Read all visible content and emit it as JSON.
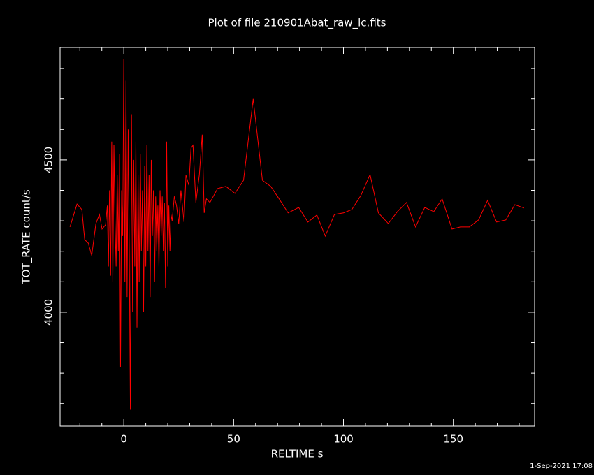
{
  "chart_data": {
    "type": "line",
    "title": "Plot of file 210901Abat_raw_lc.fits",
    "x_label": "RELTIME  s",
    "y_label": "TOT_RATE  count/s",
    "timestamp": "1-Sep-2021 17:08",
    "xlim": [
      -29,
      187
    ],
    "ylim": [
      3626,
      4869
    ],
    "xticks": [
      0,
      50,
      100,
      150
    ],
    "xminor_ticks": [
      -20,
      -10,
      10,
      20,
      30,
      40,
      60,
      70,
      80,
      90,
      110,
      120,
      130,
      140,
      160,
      170,
      180
    ],
    "yticks": [
      4000,
      4500
    ],
    "yminor_ticks": [
      3700,
      3800,
      3900,
      4100,
      4200,
      4300,
      4400,
      4600,
      4700,
      4800
    ],
    "series": [
      {
        "name": "TOT_RATE",
        "color": "#ff0000",
        "x": [
          -24.5,
          -21.3,
          -19.1,
          -17.8,
          -16.2,
          -14.6,
          -12.7,
          -11.1,
          -9.9,
          -8.3,
          -7.5,
          -7,
          -6.5,
          -6,
          -5.5,
          -5,
          -4.5,
          -4,
          -3.5,
          -3,
          -2.5,
          -2,
          -1.5,
          -1,
          -0.5,
          0,
          0.5,
          1,
          1.5,
          2,
          2.5,
          3,
          3.5,
          4,
          4.5,
          5,
          5.5,
          6,
          6.5,
          7,
          7.5,
          8,
          8.5,
          9,
          9.5,
          10,
          10.5,
          11,
          11.5,
          12,
          12.5,
          13,
          13.5,
          14,
          14.5,
          15,
          15.5,
          16,
          16.5,
          17,
          17.5,
          18,
          18.5,
          19,
          19.5,
          20,
          20.5,
          21,
          21.5,
          22,
          23,
          24,
          25,
          26,
          27.4,
          28.3,
          29.6,
          30.6,
          31.5,
          32.8,
          34.4,
          35.7,
          36.6,
          37.6,
          39.2,
          42.7,
          46.5,
          50.6,
          54.5,
          58.9,
          63.1,
          66.9,
          70.7,
          74.8,
          79.6,
          83.8,
          87.9,
          91.7,
          95.9,
          100,
          103.8,
          107.9,
          112.1,
          115.9,
          120.4,
          124.5,
          128.7,
          132.8,
          137,
          141.1,
          144.9,
          149.4,
          153.2,
          157.3,
          161.5,
          165.6,
          169.7,
          173.9,
          178,
          182.2
        ],
        "values": [
          4280,
          4355,
          4337,
          4238,
          4227,
          4186,
          4291,
          4321,
          4273,
          4287,
          4350,
          4150,
          4400,
          4120,
          4560,
          4100,
          4550,
          4300,
          4150,
          4450,
          4200,
          4520,
          3820,
          4400,
          4250,
          4830,
          4100,
          4760,
          4050,
          4600,
          4200,
          3680,
          4650,
          4000,
          4500,
          4150,
          4560,
          3950,
          4450,
          4100,
          4520,
          4200,
          4400,
          4000,
          4480,
          4150,
          4550,
          4200,
          4450,
          4050,
          4500,
          4250,
          4400,
          4100,
          4380,
          4200,
          4350,
          4150,
          4400,
          4250,
          4380,
          4200,
          4360,
          4080,
          4560,
          4150,
          4350,
          4200,
          4320,
          4300,
          4380,
          4350,
          4290,
          4400,
          4296,
          4450,
          4417,
          4539,
          4548,
          4360,
          4452,
          4583,
          4326,
          4372,
          4360,
          4406,
          4413,
          4390,
          4433,
          4700,
          4433,
          4413,
          4372,
          4326,
          4344,
          4296,
          4319,
          4250,
          4321,
          4326,
          4337,
          4383,
          4452,
          4326,
          4291,
          4330,
          4360,
          4280,
          4344,
          4330,
          4372,
          4273,
          4280,
          4280,
          4303,
          4367,
          4296,
          4303,
          4353,
          4342
        ]
      }
    ]
  }
}
